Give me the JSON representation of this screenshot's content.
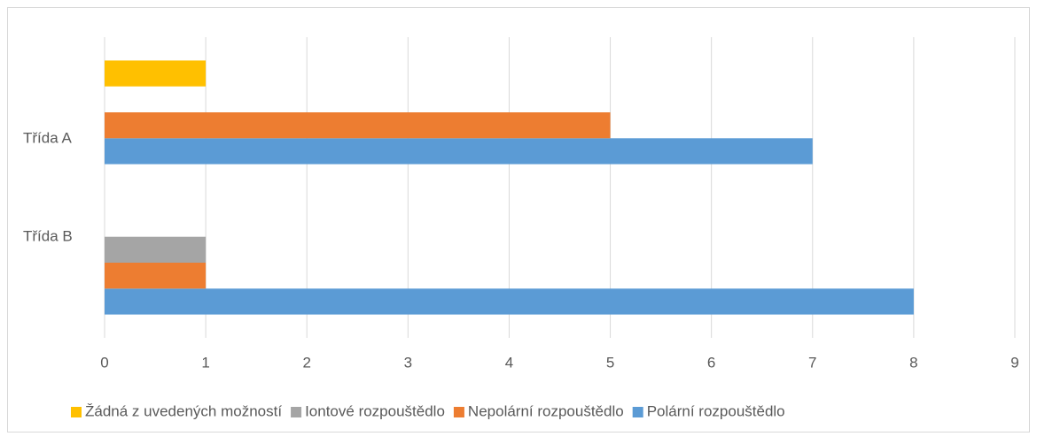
{
  "chart_data": {
    "type": "hbar",
    "categories": [
      "Třída A",
      "Třída B"
    ],
    "series": [
      {
        "name": "Polární rozpouštědlo",
        "color": "#5b9bd5",
        "values": [
          7,
          8
        ]
      },
      {
        "name": "Nepolární rozpouštědlo",
        "color": "#ed7d31",
        "values": [
          5,
          1
        ]
      },
      {
        "name": "Iontové rozpouštědlo",
        "color": "#a5a5a5",
        "values": [
          0,
          1
        ]
      },
      {
        "name": "Žádná z uvedených možností",
        "color": "#ffc000",
        "values": [
          1,
          0
        ]
      }
    ],
    "xlim": [
      0,
      9
    ],
    "xticks": [
      0,
      1,
      2,
      3,
      4,
      5,
      6,
      7,
      8,
      9
    ],
    "grid": true,
    "legend": "bottom"
  }
}
